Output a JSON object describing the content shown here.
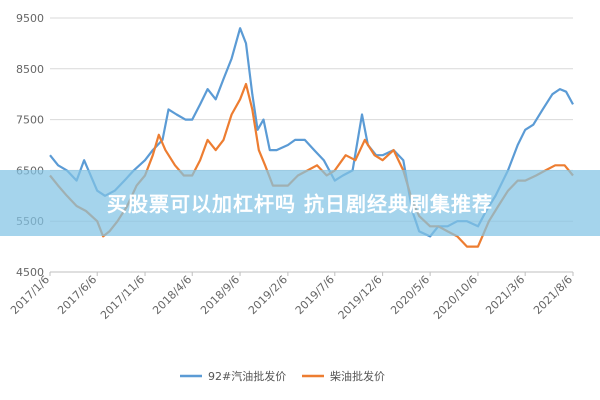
{
  "banner": {
    "text": "买股票可以加杠杆吗 抗日剧经典剧集推荐"
  },
  "colors": {
    "series_1": "#5b9bd5",
    "series_2": "#ed7d31",
    "grid": "#d9d9d9",
    "banner": "#82c4e4"
  },
  "chart_data": {
    "type": "line",
    "grid": true,
    "legend_position": "bottom",
    "ylim": [
      4500,
      9500
    ],
    "yticks": [
      4500,
      5500,
      6500,
      7500,
      8500,
      9500
    ],
    "xlim": [
      "2017/1/6",
      "2021/8/6"
    ],
    "xticks": [
      "2017/1/6",
      "2017/6/6",
      "2017/11/6",
      "2018/4/6",
      "2018/9/6",
      "2019/2/6",
      "2019/7/6",
      "2019/12/6",
      "2020/5/6",
      "2020/10/6",
      "2021/3/6",
      "2021/8/6"
    ],
    "series": [
      {
        "name": "92#汽油批发价",
        "points": [
          [
            "2017/1/6",
            6800
          ],
          [
            "2017/2/1",
            6600
          ],
          [
            "2017/3/1",
            6500
          ],
          [
            "2017/4/1",
            6300
          ],
          [
            "2017/4/25",
            6700
          ],
          [
            "2017/6/6",
            6100
          ],
          [
            "2017/7/1",
            6000
          ],
          [
            "2017/8/1",
            6100
          ],
          [
            "2017/9/1",
            6300
          ],
          [
            "2017/10/1",
            6500
          ],
          [
            "2017/11/6",
            6700
          ],
          [
            "2017/12/1",
            6900
          ],
          [
            "2018/1/1",
            7100
          ],
          [
            "2018/1/20",
            7700
          ],
          [
            "2018/2/15",
            7600
          ],
          [
            "2018/3/15",
            7500
          ],
          [
            "2018/4/6",
            7500
          ],
          [
            "2018/5/1",
            7800
          ],
          [
            "2018/5/25",
            8100
          ],
          [
            "2018/6/20",
            7900
          ],
          [
            "2018/7/15",
            8300
          ],
          [
            "2018/8/10",
            8700
          ],
          [
            "2018/9/6",
            9300
          ],
          [
            "2018/9/25",
            9000
          ],
          [
            "2018/10/15",
            8000
          ],
          [
            "2018/11/1",
            7300
          ],
          [
            "2018/11/20",
            7500
          ],
          [
            "2018/12/10",
            6900
          ],
          [
            "2019/1/1",
            6900
          ],
          [
            "2019/2/6",
            7000
          ],
          [
            "2019/3/1",
            7100
          ],
          [
            "2019/4/1",
            7100
          ],
          [
            "2019/5/1",
            6900
          ],
          [
            "2019/6/1",
            6700
          ],
          [
            "2019/7/6",
            6300
          ],
          [
            "2019/8/1",
            6400
          ],
          [
            "2019/9/1",
            6500
          ],
          [
            "2019/10/1",
            7600
          ],
          [
            "2019/10/20",
            7000
          ],
          [
            "2019/11/15",
            6800
          ],
          [
            "2019/12/6",
            6800
          ],
          [
            "2020/1/10",
            6900
          ],
          [
            "2020/2/10",
            6700
          ],
          [
            "2020/3/10",
            5700
          ],
          [
            "2020/4/1",
            5300
          ],
          [
            "2020/5/6",
            5200
          ],
          [
            "2020/6/1",
            5400
          ],
          [
            "2020/7/1",
            5400
          ],
          [
            "2020/8/1",
            5500
          ],
          [
            "2020/9/1",
            5500
          ],
          [
            "2020/10/6",
            5400
          ],
          [
            "2020/11/1",
            5700
          ],
          [
            "2020/12/1",
            6000
          ],
          [
            "2021/1/10",
            6500
          ],
          [
            "2021/2/10",
            7000
          ],
          [
            "2021/3/6",
            7300
          ],
          [
            "2021/4/1",
            7400
          ],
          [
            "2021/5/1",
            7700
          ],
          [
            "2021/6/1",
            8000
          ],
          [
            "2021/6/25",
            8100
          ],
          [
            "2021/7/15",
            8050
          ],
          [
            "2021/8/6",
            7800
          ]
        ]
      },
      {
        "name": "柴油批发价",
        "points": [
          [
            "2017/1/6",
            6400
          ],
          [
            "2017/2/1",
            6200
          ],
          [
            "2017/3/1",
            6000
          ],
          [
            "2017/4/1",
            5800
          ],
          [
            "2017/5/1",
            5700
          ],
          [
            "2017/6/6",
            5500
          ],
          [
            "2017/6/25",
            5200
          ],
          [
            "2017/7/15",
            5300
          ],
          [
            "2017/8/10",
            5500
          ],
          [
            "2017/9/10",
            5800
          ],
          [
            "2017/10/10",
            6200
          ],
          [
            "2017/11/6",
            6400
          ],
          [
            "2017/12/1",
            6800
          ],
          [
            "2017/12/20",
            7200
          ],
          [
            "2018/1/10",
            6900
          ],
          [
            "2018/2/10",
            6600
          ],
          [
            "2018/3/10",
            6400
          ],
          [
            "2018/4/6",
            6400
          ],
          [
            "2018/5/1",
            6700
          ],
          [
            "2018/5/25",
            7100
          ],
          [
            "2018/6/20",
            6900
          ],
          [
            "2018/7/15",
            7100
          ],
          [
            "2018/8/10",
            7600
          ],
          [
            "2018/9/6",
            7900
          ],
          [
            "2018/9/25",
            8200
          ],
          [
            "2018/10/15",
            7700
          ],
          [
            "2018/11/5",
            6900
          ],
          [
            "2018/11/25",
            6600
          ],
          [
            "2018/12/20",
            6200
          ],
          [
            "2019/2/6",
            6200
          ],
          [
            "2019/3/10",
            6400
          ],
          [
            "2019/4/10",
            6500
          ],
          [
            "2019/5/10",
            6600
          ],
          [
            "2019/6/10",
            6400
          ],
          [
            "2019/7/6",
            6500
          ],
          [
            "2019/8/10",
            6800
          ],
          [
            "2019/9/10",
            6700
          ],
          [
            "2019/10/10",
            7100
          ],
          [
            "2019/11/10",
            6800
          ],
          [
            "2019/12/6",
            6700
          ],
          [
            "2020/1/10",
            6900
          ],
          [
            "2020/2/10",
            6500
          ],
          [
            "2020/3/10",
            5900
          ],
          [
            "2020/4/1",
            5600
          ],
          [
            "2020/5/6",
            5400
          ],
          [
            "2020/6/1",
            5400
          ],
          [
            "2020/7/1",
            5300
          ],
          [
            "2020/8/1",
            5200
          ],
          [
            "2020/9/1",
            5000
          ],
          [
            "2020/10/6",
            5000
          ],
          [
            "2020/11/10",
            5500
          ],
          [
            "2020/12/10",
            5800
          ],
          [
            "2021/1/10",
            6100
          ],
          [
            "2021/2/10",
            6300
          ],
          [
            "2021/3/6",
            6300
          ],
          [
            "2021/4/10",
            6400
          ],
          [
            "2021/5/10",
            6500
          ],
          [
            "2021/6/10",
            6600
          ],
          [
            "2021/7/10",
            6600
          ],
          [
            "2021/8/6",
            6400
          ]
        ]
      }
    ]
  }
}
